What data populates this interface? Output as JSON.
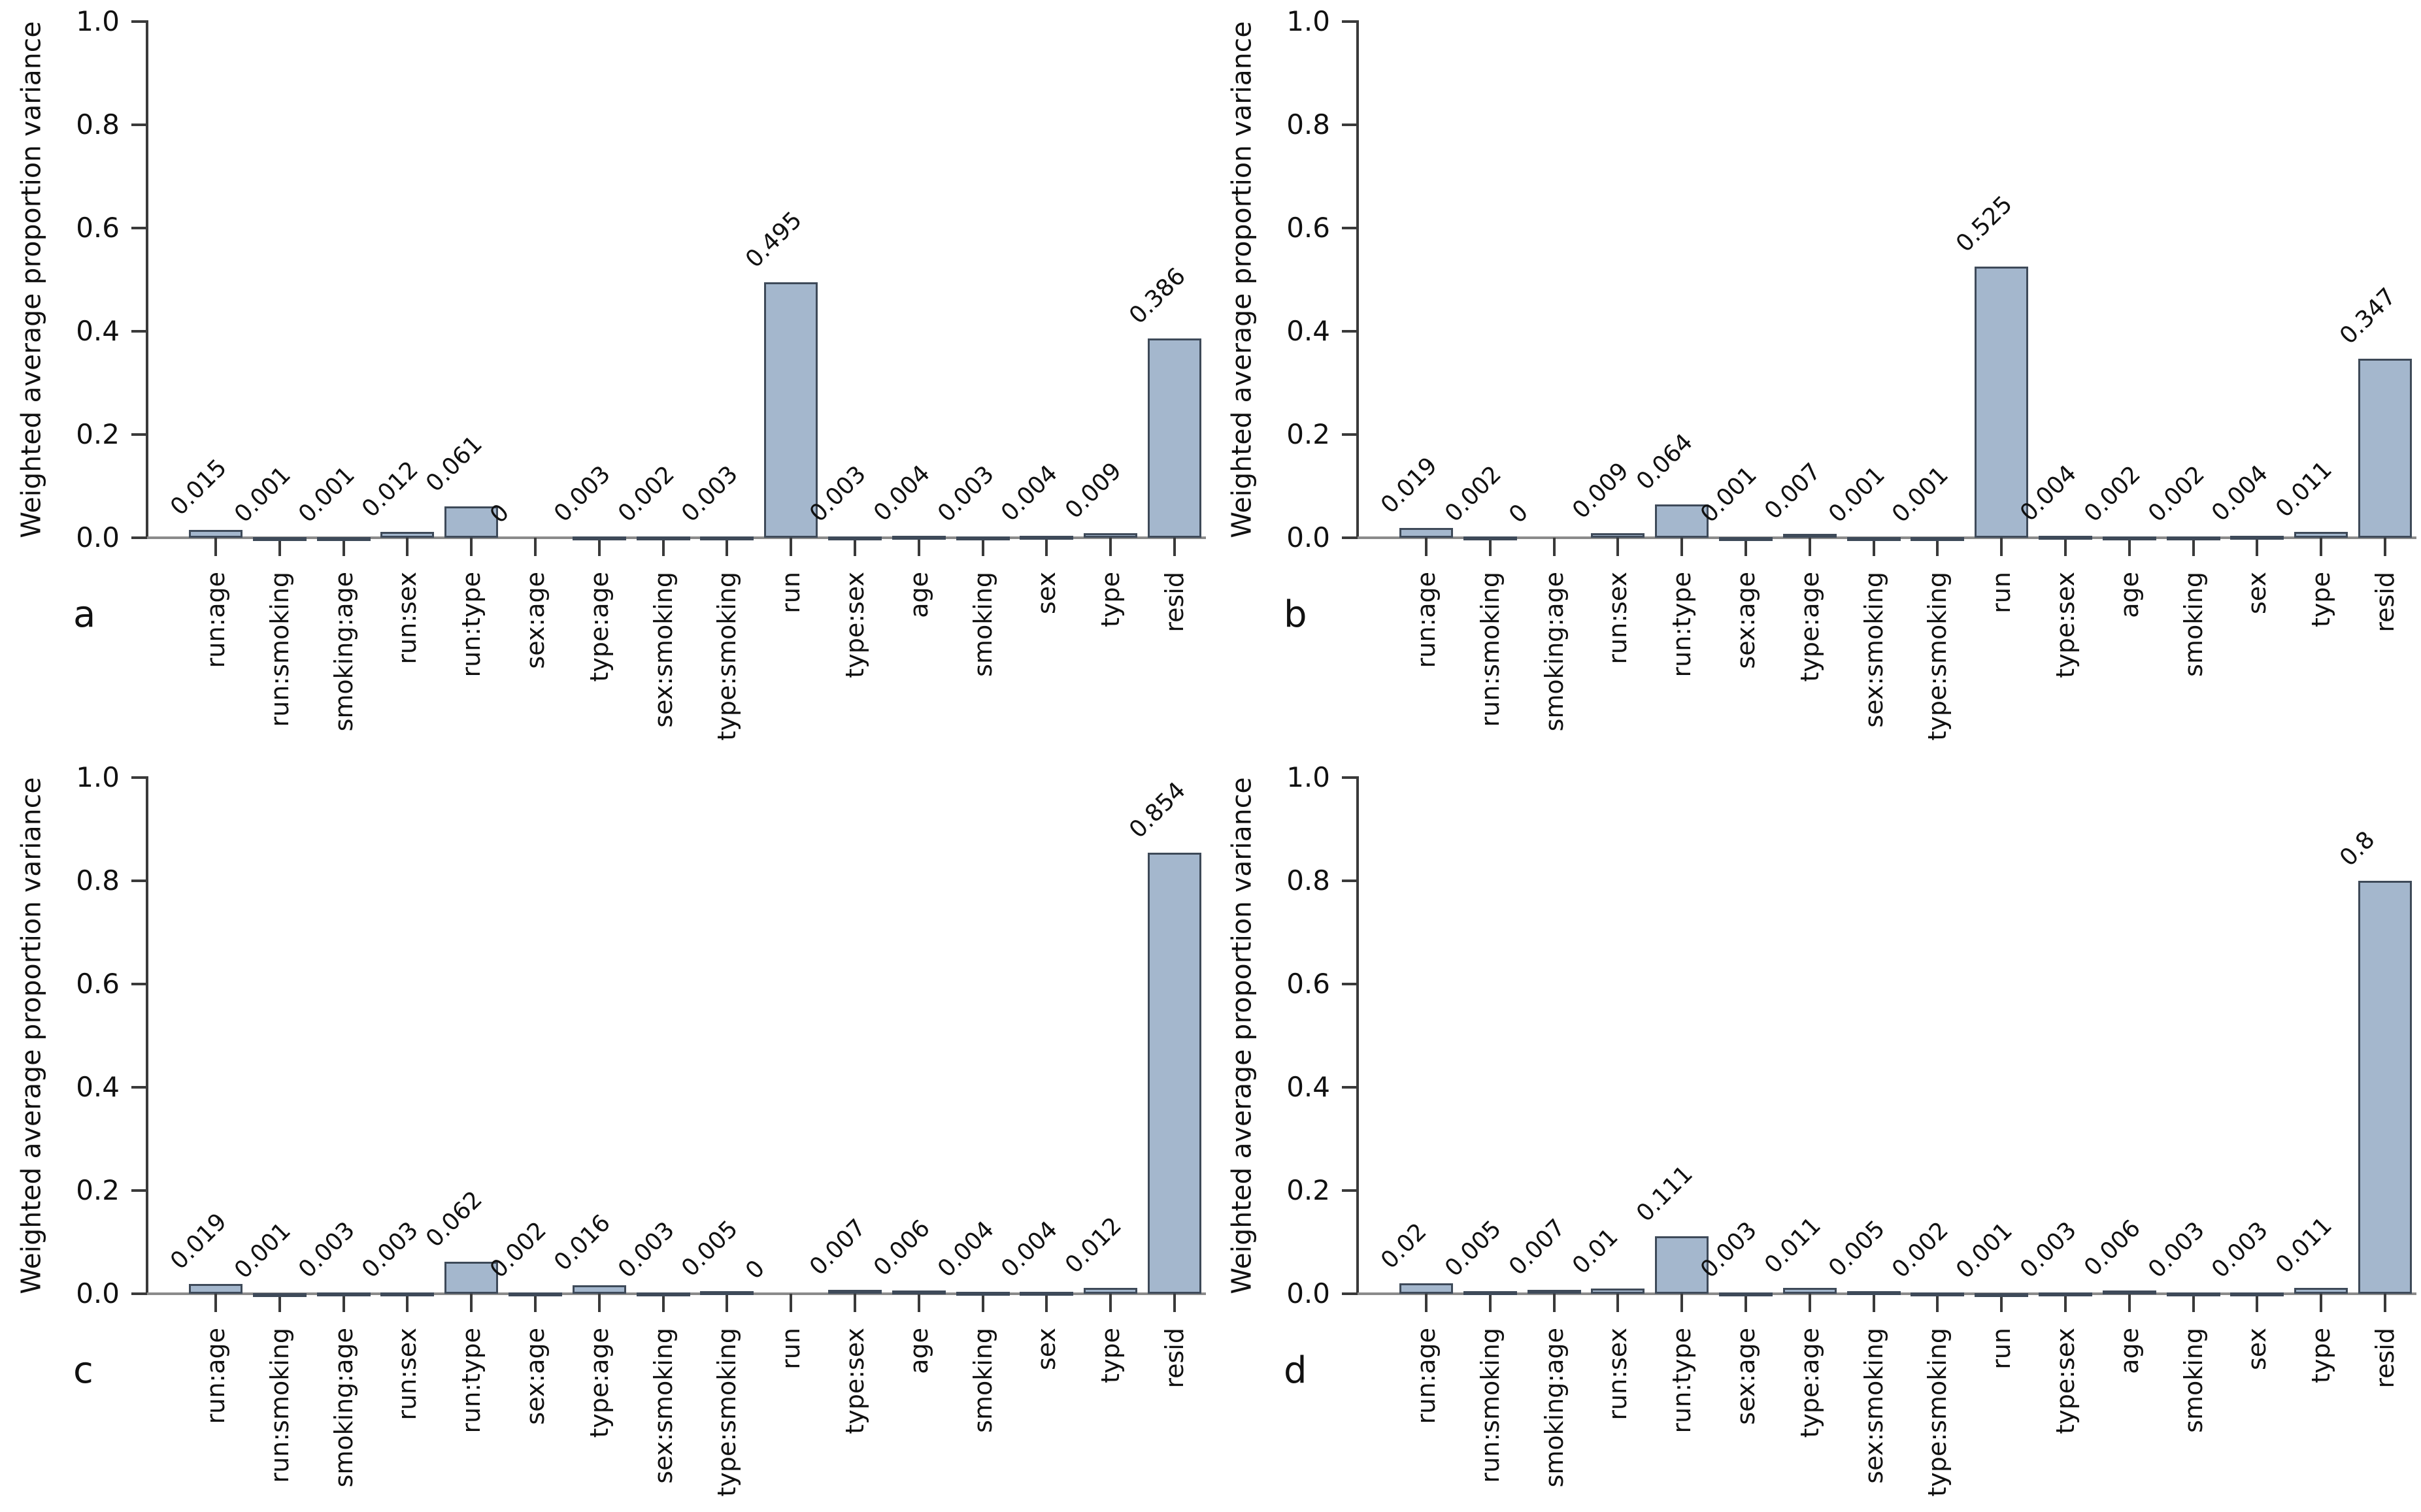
{
  "chart_data": {
    "type": "bar",
    "ylabel": "Weighted average proportion variance",
    "ylim": [
      0,
      1
    ],
    "yticks": [
      0,
      0.2,
      0.4,
      0.6,
      0.8,
      1.0
    ],
    "ytick_labels": [
      "0.0",
      "0.2",
      "0.4",
      "0.6",
      "0.8",
      "1.0"
    ],
    "grid": false,
    "legend": "none",
    "categories": [
      "run:age",
      "run:smoking",
      "smoking:age",
      "run:sex",
      "run:type",
      "sex:age",
      "type:age",
      "sex:smoking",
      "type:smoking",
      "run",
      "type:sex",
      "age",
      "smoking",
      "sex",
      "type",
      "resid"
    ],
    "panels": [
      {
        "letter": "a",
        "values": [
          0.015,
          0.001,
          0.001,
          0.012,
          0.061,
          0,
          0.003,
          0.002,
          0.003,
          0.495,
          0.003,
          0.004,
          0.003,
          0.004,
          0.009,
          0.386
        ],
        "value_labels": [
          "0.015",
          "0.001",
          "0.001",
          "0.012",
          "0.061",
          "0",
          "0.003",
          "0.002",
          "0.003",
          "0.495",
          "0.003",
          "0.004",
          "0.003",
          "0.004",
          "0.009",
          "0.386"
        ]
      },
      {
        "letter": "b",
        "values": [
          0.019,
          0.002,
          0,
          0.009,
          0.064,
          0.001,
          0.007,
          0.001,
          0.001,
          0.525,
          0.004,
          0.002,
          0.002,
          0.004,
          0.011,
          0.347
        ],
        "value_labels": [
          "0.019",
          "0.002",
          "0",
          "0.009",
          "0.064",
          "0.001",
          "0.007",
          "0.001",
          "0.001",
          "0.525",
          "0.004",
          "0.002",
          "0.002",
          "0.004",
          "0.011",
          "0.347"
        ]
      },
      {
        "letter": "c",
        "values": [
          0.019,
          0.001,
          0.003,
          0.003,
          0.062,
          0.002,
          0.016,
          0.003,
          0.005,
          0,
          0.007,
          0.006,
          0.004,
          0.004,
          0.012,
          0.854
        ],
        "value_labels": [
          "0.019",
          "0.001",
          "0.003",
          "0.003",
          "0.062",
          "0.002",
          "0.016",
          "0.003",
          "0.005",
          "0",
          "0.007",
          "0.006",
          "0.004",
          "0.004",
          "0.012",
          "0.854"
        ]
      },
      {
        "letter": "d",
        "values": [
          0.02,
          0.005,
          0.007,
          0.01,
          0.111,
          0.003,
          0.011,
          0.005,
          0.002,
          0.001,
          0.003,
          0.006,
          0.003,
          0.003,
          0.011,
          0.8
        ],
        "value_labels": [
          "0.02",
          "0.005",
          "0.007",
          "0.01",
          "0.111",
          "0.003",
          "0.011",
          "0.005",
          "0.002",
          "0.001",
          "0.003",
          "0.006",
          "0.003",
          "0.003",
          "0.011",
          "0.8"
        ]
      }
    ]
  },
  "colors": {
    "background": "#ffffff",
    "text": "#111111",
    "bar_fill": "#a4b7cd",
    "bar_border": "#3e4a59",
    "x_axis": "#8b8b8b",
    "y_axis": "#3a3a3a",
    "tick": "#3a3a3a"
  }
}
